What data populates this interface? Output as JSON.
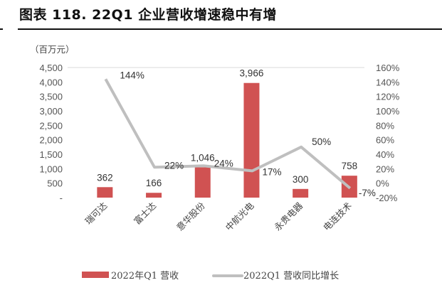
{
  "title": "图表 118. 22Q1 企业营收增速稳中有增",
  "chart_data": {
    "type": "bar+line",
    "ylabel": "（百万元）",
    "categories": [
      "瑞可达",
      "富士达",
      "意华股份",
      "中航光电",
      "永贵电器",
      "电连技术"
    ],
    "series": [
      {
        "name": "2022年Q1 营收",
        "type": "bar",
        "axis": "left",
        "values": [
          362,
          166,
          1046,
          3966,
          300,
          758
        ],
        "labels": [
          "362",
          "166",
          "1,046",
          "3,966",
          "300",
          "758"
        ],
        "color": "#d05252"
      },
      {
        "name": "2022Q1 营收同比增长",
        "type": "line",
        "axis": "right",
        "values": [
          144,
          22,
          24,
          17,
          50,
          -7
        ],
        "labels": [
          "144%",
          "22%",
          "24%",
          "17%",
          "50%",
          "-7%"
        ],
        "color": "#bfbfbf"
      }
    ],
    "left_axis": {
      "ylim": [
        0,
        4500
      ],
      "ticks": [
        "-",
        "500",
        "1,000",
        "1,500",
        "2,000",
        "2,500",
        "3,000",
        "3,500",
        "4,000",
        "4,500"
      ]
    },
    "right_axis": {
      "ylim": [
        -20,
        160
      ],
      "ticks": [
        "-20%",
        "0%",
        "20%",
        "40%",
        "60%",
        "80%",
        "100%",
        "120%",
        "140%",
        "160%"
      ]
    },
    "grid": false,
    "legend": "bottom"
  }
}
